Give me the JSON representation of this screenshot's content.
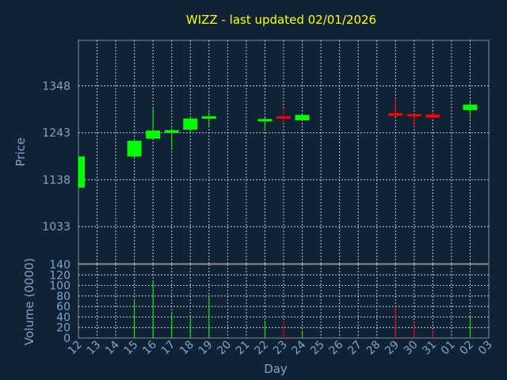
{
  "chart_data": {
    "type": "candlestick",
    "title": "WIZZ - last updated 02/01/2026",
    "colors": {
      "background": "#0f2236",
      "up": "#00ff00",
      "down": "#ff0000",
      "title": "#ffff00",
      "axis_text": "#7fa5c8"
    },
    "price_panel": {
      "ylabel": "Price",
      "yticks": [
        1033,
        1138,
        1243,
        1348
      ],
      "ylim": [
        950,
        1450
      ]
    },
    "volume_panel": {
      "ylabel": "Volume (0000)",
      "yticks": [
        0,
        20,
        40,
        60,
        80,
        100,
        120,
        140
      ],
      "ylim": [
        0,
        140
      ]
    },
    "xlabel": "Day",
    "x_tick_labels": [
      "12",
      "13",
      "14",
      "15",
      "16",
      "17",
      "18",
      "19",
      "20",
      "21",
      "22",
      "23",
      "24",
      "25",
      "26",
      "27",
      "28",
      "29",
      "30",
      "31",
      "01",
      "02",
      "03"
    ],
    "candles": [
      {
        "day": "12",
        "open": 1120,
        "close": 1190,
        "high": 1190,
        "low": 1120,
        "volume": 0
      },
      {
        "day": "15",
        "open": 1190,
        "close": 1225,
        "high": 1230,
        "low": 1185,
        "volume": 73
      },
      {
        "day": "16",
        "open": 1230,
        "close": 1248,
        "high": 1300,
        "low": 1230,
        "volume": 108
      },
      {
        "day": "17",
        "open": 1243,
        "close": 1249,
        "high": 1253,
        "low": 1205,
        "volume": 50
      },
      {
        "day": "18",
        "open": 1250,
        "close": 1275,
        "high": 1278,
        "low": 1243,
        "volume": 43
      },
      {
        "day": "19",
        "open": 1279,
        "close": 1280,
        "high": 1290,
        "low": 1256,
        "volume": 80
      },
      {
        "day": "22",
        "open": 1270,
        "close": 1274,
        "high": 1276,
        "low": 1250,
        "volume": 33
      },
      {
        "day": "23",
        "open": 1280,
        "close": 1278,
        "high": 1295,
        "low": 1264,
        "volume": 33
      },
      {
        "day": "24",
        "open": 1271,
        "close": 1283,
        "high": 1284,
        "low": 1270,
        "volume": 13
      },
      {
        "day": "29",
        "open": 1287,
        "close": 1281,
        "high": 1320,
        "low": 1280,
        "volume": 60
      },
      {
        "day": "30",
        "open": 1285,
        "close": 1283,
        "high": 1286,
        "low": 1257,
        "volume": 30
      },
      {
        "day": "31",
        "open": 1284,
        "close": 1277,
        "high": 1290,
        "low": 1275,
        "volume": 13
      },
      {
        "day": "02",
        "open": 1294,
        "close": 1306,
        "high": 1313,
        "low": 1275,
        "volume": 42
      }
    ]
  }
}
